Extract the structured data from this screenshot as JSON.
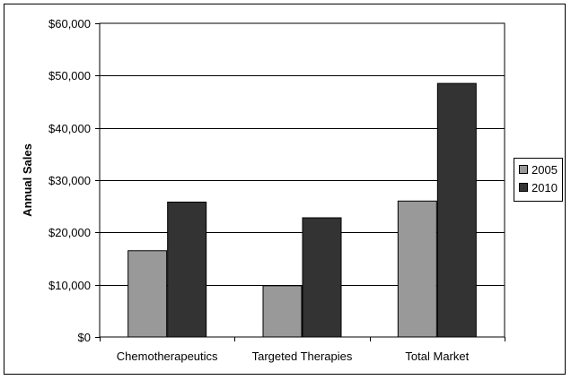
{
  "chart_data": {
    "type": "bar",
    "title": "",
    "xlabel": "",
    "ylabel": "Annual Sales",
    "categories": [
      "Chemotherapeutics",
      "Targeted Therapies",
      "Total Market"
    ],
    "series": [
      {
        "name": "2005",
        "values": [
          16500,
          9800,
          26000
        ],
        "color": "#999999"
      },
      {
        "name": "2010",
        "values": [
          25800,
          22800,
          48500
        ],
        "color": "#333333"
      }
    ],
    "ylim": [
      0,
      60000
    ],
    "yticks": [
      0,
      10000,
      20000,
      30000,
      40000,
      50000,
      60000
    ],
    "ytick_labels": [
      "$0",
      "$10,000",
      "$20,000",
      "$30,000",
      "$40,000",
      "$50,000",
      "$60,000"
    ],
    "grid": true,
    "legend_position": "right"
  }
}
